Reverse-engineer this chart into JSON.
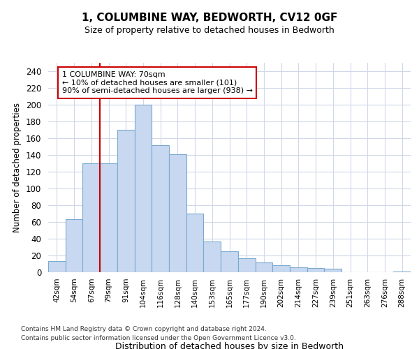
{
  "title": "1, COLUMBINE WAY, BEDWORTH, CV12 0GF",
  "subtitle": "Size of property relative to detached houses in Bedworth",
  "xlabel": "Distribution of detached houses by size in Bedworth",
  "ylabel": "Number of detached properties",
  "categories": [
    "42sqm",
    "54sqm",
    "67sqm",
    "79sqm",
    "91sqm",
    "104sqm",
    "116sqm",
    "128sqm",
    "140sqm",
    "153sqm",
    "165sqm",
    "177sqm",
    "190sqm",
    "202sqm",
    "214sqm",
    "227sqm",
    "239sqm",
    "251sqm",
    "263sqm",
    "276sqm",
    "288sqm"
  ],
  "bar_values": [
    13,
    63,
    130,
    130,
    170,
    200,
    152,
    141,
    70,
    37,
    25,
    17,
    12,
    8,
    6,
    5,
    4,
    0,
    0,
    0,
    1
  ],
  "bar_color": "#c8d8f0",
  "bar_edgecolor": "#7aaad0",
  "vline_position": 2.5,
  "vline_color": "#cc0000",
  "annotation_text": "1 COLUMBINE WAY: 70sqm\n← 10% of detached houses are smaller (101)\n90% of semi-detached houses are larger (938) →",
  "annotation_box_facecolor": "#ffffff",
  "annotation_box_edgecolor": "#cc0000",
  "ylim": [
    0,
    250
  ],
  "yticks": [
    0,
    20,
    40,
    60,
    80,
    100,
    120,
    140,
    160,
    180,
    200,
    220,
    240
  ],
  "background_color": "#ffffff",
  "grid_color": "#d0d8e8",
  "footer1": "Contains HM Land Registry data © Crown copyright and database right 2024.",
  "footer2": "Contains public sector information licensed under the Open Government Licence v3.0."
}
